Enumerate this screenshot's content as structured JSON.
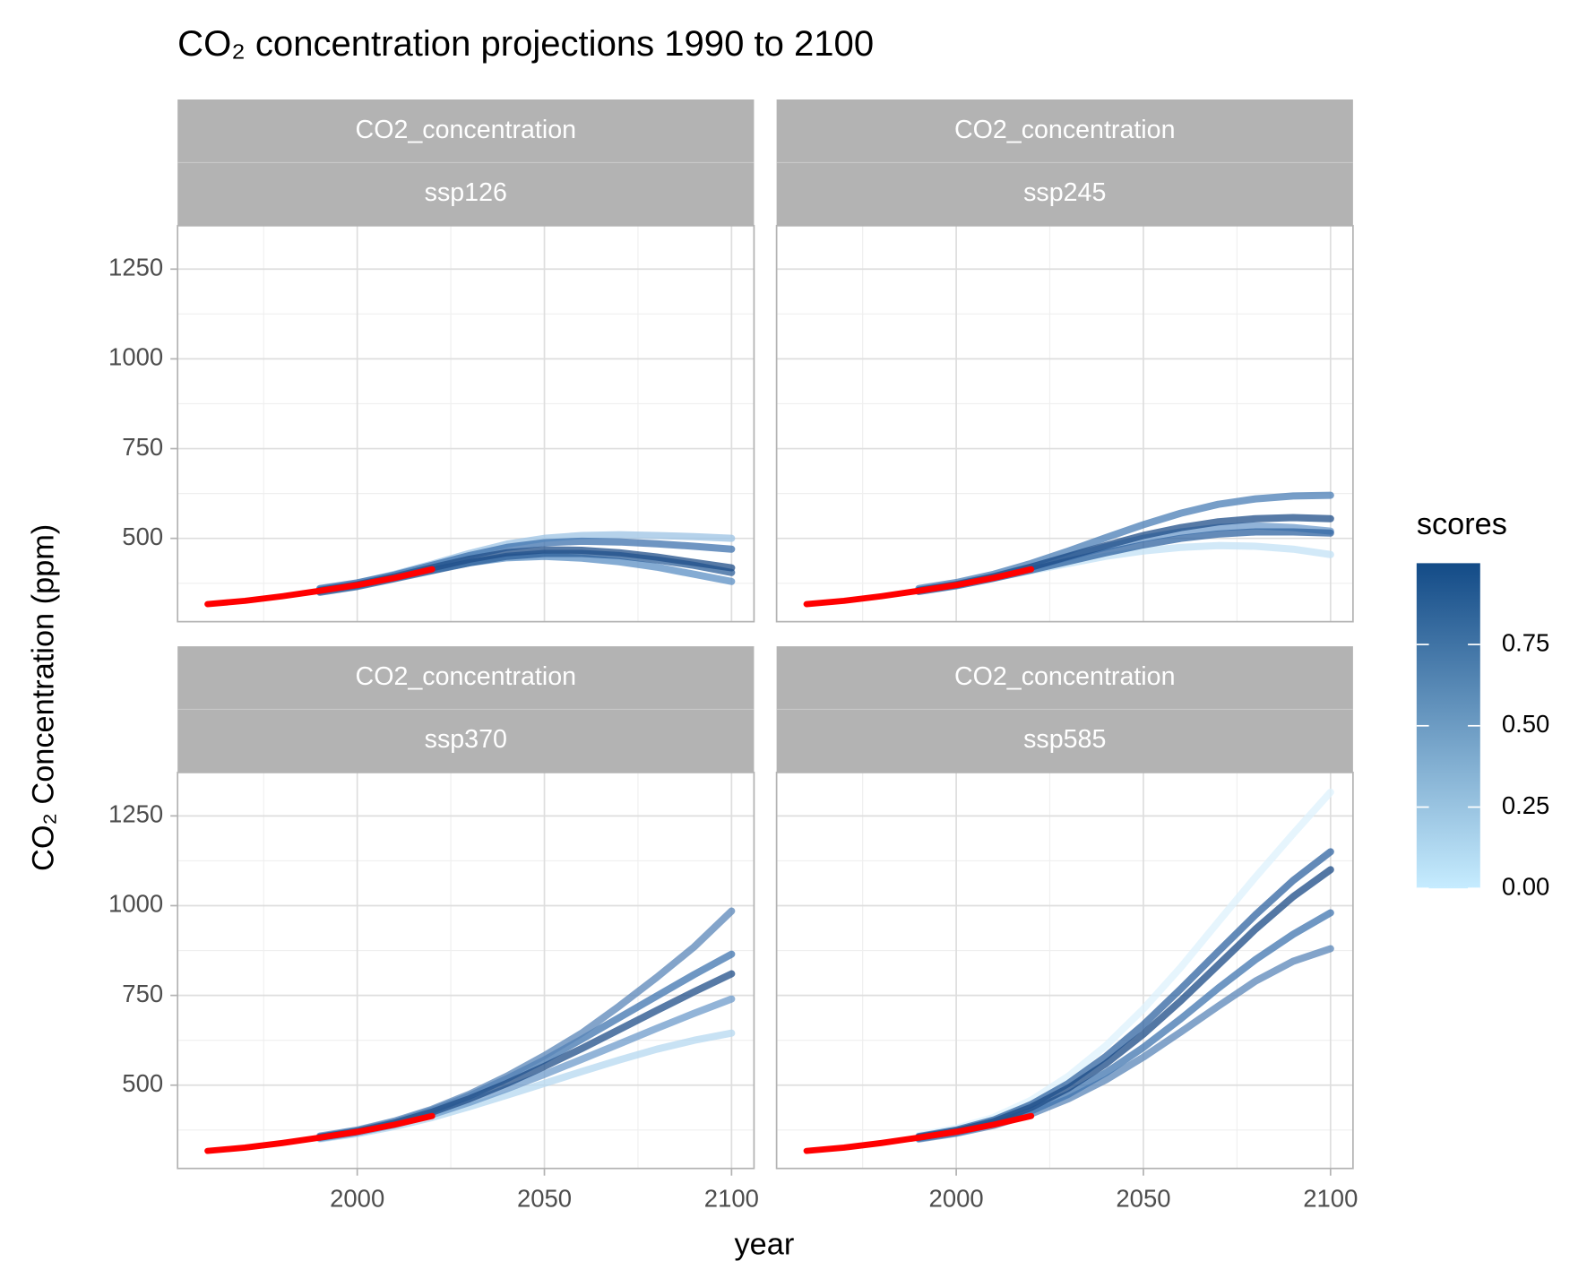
{
  "title": "CO₂ concentration projections 1990 to 2100",
  "x_label": "year",
  "y_label": "CO₂ Concentration (ppm)",
  "legend": {
    "title": "scores",
    "limits": [
      0,
      1
    ],
    "low": "#c6ecff",
    "high": "#134b87",
    "ticks": [
      {
        "value": 0,
        "label": "0.00"
      },
      {
        "value": 0.25,
        "label": "0.25"
      },
      {
        "value": 0.5,
        "label": "0.50"
      },
      {
        "value": 0.75,
        "label": "0.75"
      }
    ]
  },
  "chart_data": [
    {
      "type": "line",
      "strips": [
        "CO2_concentration",
        "ssp126"
      ],
      "x": [
        1960,
        1970,
        1980,
        1990,
        2000,
        2010,
        2020,
        2030,
        2040,
        2050,
        2060,
        2070,
        2080,
        2090,
        2100
      ],
      "xlim": [
        1952,
        2106
      ],
      "ylim": [
        268,
        1371
      ],
      "xticks": [
        2000,
        2050,
        2100
      ],
      "yticks": [
        500,
        750,
        1000,
        1250
      ],
      "xminor": [
        1975,
        2025,
        2075
      ],
      "yminor": [
        375,
        625,
        875,
        1125
      ],
      "grid": true,
      "series": [
        {
          "color": "#9cc3e4",
          "values": [
            null,
            null,
            null,
            358,
            375,
            400,
            428,
            458,
            484,
            500,
            508,
            510,
            508,
            505,
            500
          ]
        },
        {
          "color": "#5b8fc4",
          "values": [
            null,
            null,
            null,
            352,
            368,
            390,
            412,
            432,
            446,
            450,
            445,
            435,
            420,
            400,
            380
          ]
        },
        {
          "color": "#3d72ad",
          "values": [
            null,
            null,
            null,
            360,
            376,
            398,
            425,
            452,
            475,
            488,
            492,
            490,
            485,
            478,
            470
          ]
        },
        {
          "color": "#2c5f9a",
          "values": [
            null,
            null,
            null,
            350,
            366,
            388,
            410,
            432,
            450,
            458,
            458,
            452,
            440,
            425,
            405
          ]
        },
        {
          "color": "#1f4e88",
          "values": [
            null,
            null,
            null,
            355,
            371,
            393,
            418,
            442,
            460,
            468,
            467,
            460,
            448,
            433,
            418
          ]
        },
        {
          "color": "#ff0000",
          "values": [
            317,
            326,
            339,
            354,
            370,
            390,
            414,
            null,
            null,
            null,
            null,
            null,
            null,
            null,
            null
          ]
        }
      ]
    },
    {
      "type": "line",
      "strips": [
        "CO2_concentration",
        "ssp245"
      ],
      "x": [
        1960,
        1970,
        1980,
        1990,
        2000,
        2010,
        2020,
        2030,
        2040,
        2050,
        2060,
        2070,
        2080,
        2090,
        2100
      ],
      "xlim": [
        1952,
        2106
      ],
      "ylim": [
        268,
        1371
      ],
      "xticks": [
        2000,
        2050,
        2100
      ],
      "yticks": [
        500,
        750,
        1000,
        1250
      ],
      "xminor": [
        1975,
        2025,
        2075
      ],
      "yminor": [
        375,
        625,
        875,
        1125
      ],
      "grid": true,
      "series": [
        {
          "color": "#c3e2f5",
          "values": [
            null,
            null,
            null,
            354,
            369,
            390,
            410,
            430,
            450,
            465,
            475,
            480,
            478,
            470,
            455
          ]
        },
        {
          "color": "#6c9acb",
          "values": [
            null,
            null,
            null,
            356,
            372,
            394,
            420,
            448,
            476,
            500,
            518,
            530,
            535,
            530,
            520
          ]
        },
        {
          "color": "#4a7db6",
          "values": [
            null,
            null,
            null,
            360,
            377,
            400,
            430,
            465,
            502,
            538,
            570,
            595,
            610,
            618,
            620
          ]
        },
        {
          "color": "#2f63a0",
          "values": [
            null,
            null,
            null,
            352,
            368,
            389,
            412,
            436,
            460,
            482,
            500,
            512,
            518,
            518,
            515
          ]
        },
        {
          "color": "#1f4e88",
          "values": [
            null,
            null,
            null,
            355,
            371,
            393,
            420,
            450,
            480,
            508,
            530,
            546,
            555,
            558,
            555
          ]
        },
        {
          "color": "#ff0000",
          "values": [
            317,
            326,
            339,
            354,
            370,
            390,
            414,
            null,
            null,
            null,
            null,
            null,
            null,
            null,
            null
          ]
        }
      ]
    },
    {
      "type": "line",
      "strips": [
        "CO2_concentration",
        "ssp370"
      ],
      "x": [
        1960,
        1970,
        1980,
        1990,
        2000,
        2010,
        2020,
        2030,
        2040,
        2050,
        2060,
        2070,
        2080,
        2090,
        2100
      ],
      "xlim": [
        1952,
        2106
      ],
      "ylim": [
        268,
        1371
      ],
      "xticks": [
        2000,
        2050,
        2100
      ],
      "yticks": [
        500,
        750,
        1000,
        1250
      ],
      "xminor": [
        1975,
        2025,
        2075
      ],
      "yminor": [
        375,
        625,
        875,
        1125
      ],
      "grid": true,
      "series": [
        {
          "color": "#b5d8f0",
          "values": [
            null,
            null,
            null,
            350,
            365,
            385,
            410,
            440,
            472,
            505,
            538,
            570,
            600,
            625,
            645
          ]
        },
        {
          "color": "#6e9bcb",
          "values": [
            null,
            null,
            null,
            352,
            368,
            390,
            418,
            452,
            490,
            530,
            572,
            615,
            658,
            700,
            740
          ]
        },
        {
          "color": "#3f74af",
          "values": [
            null,
            null,
            null,
            356,
            373,
            397,
            430,
            470,
            518,
            570,
            628,
            688,
            748,
            808,
            865
          ]
        },
        {
          "color": "#5a85b8",
          "values": [
            null,
            null,
            null,
            358,
            375,
            400,
            433,
            475,
            525,
            582,
            645,
            720,
            800,
            885,
            985
          ]
        },
        {
          "color": "#1f4e88",
          "values": [
            null,
            null,
            null,
            355,
            371,
            394,
            425,
            462,
            505,
            552,
            602,
            655,
            708,
            760,
            810
          ]
        },
        {
          "color": "#ff0000",
          "values": [
            317,
            326,
            339,
            354,
            370,
            390,
            414,
            null,
            null,
            null,
            null,
            null,
            null,
            null,
            null
          ]
        }
      ]
    },
    {
      "type": "line",
      "strips": [
        "CO2_concentration",
        "ssp585"
      ],
      "x": [
        1960,
        1970,
        1980,
        1990,
        2000,
        2010,
        2020,
        2030,
        2040,
        2050,
        2060,
        2070,
        2080,
        2090,
        2100
      ],
      "xlim": [
        1952,
        2106
      ],
      "ylim": [
        268,
        1371
      ],
      "xticks": [
        2000,
        2050,
        2100
      ],
      "yticks": [
        500,
        750,
        1000,
        1250
      ],
      "xminor": [
        1975,
        2025,
        2075
      ],
      "yminor": [
        375,
        625,
        875,
        1125
      ],
      "grid": true,
      "series": [
        {
          "color": "#ddf1fc",
          "values": [
            null,
            null,
            null,
            360,
            380,
            410,
            458,
            525,
            610,
            712,
            828,
            955,
            1080,
            1200,
            1316
          ]
        },
        {
          "color": "#5a85b8",
          "values": [
            null,
            null,
            null,
            350,
            366,
            388,
            420,
            462,
            515,
            578,
            648,
            720,
            790,
            845,
            880
          ]
        },
        {
          "color": "#2f63a0",
          "values": [
            null,
            null,
            null,
            357,
            375,
            403,
            446,
            505,
            580,
            668,
            768,
            872,
            975,
            1070,
            1150
          ]
        },
        {
          "color": "#3f74af",
          "values": [
            null,
            null,
            null,
            352,
            368,
            392,
            428,
            475,
            535,
            605,
            685,
            770,
            850,
            920,
            980
          ]
        },
        {
          "color": "#1a4a85",
          "values": [
            null,
            null,
            null,
            355,
            372,
            398,
            438,
            492,
            560,
            642,
            735,
            835,
            935,
            1025,
            1100
          ]
        },
        {
          "color": "#ff0000",
          "values": [
            317,
            326,
            339,
            354,
            370,
            390,
            414,
            null,
            null,
            null,
            null,
            null,
            null,
            null,
            null
          ]
        }
      ]
    }
  ]
}
